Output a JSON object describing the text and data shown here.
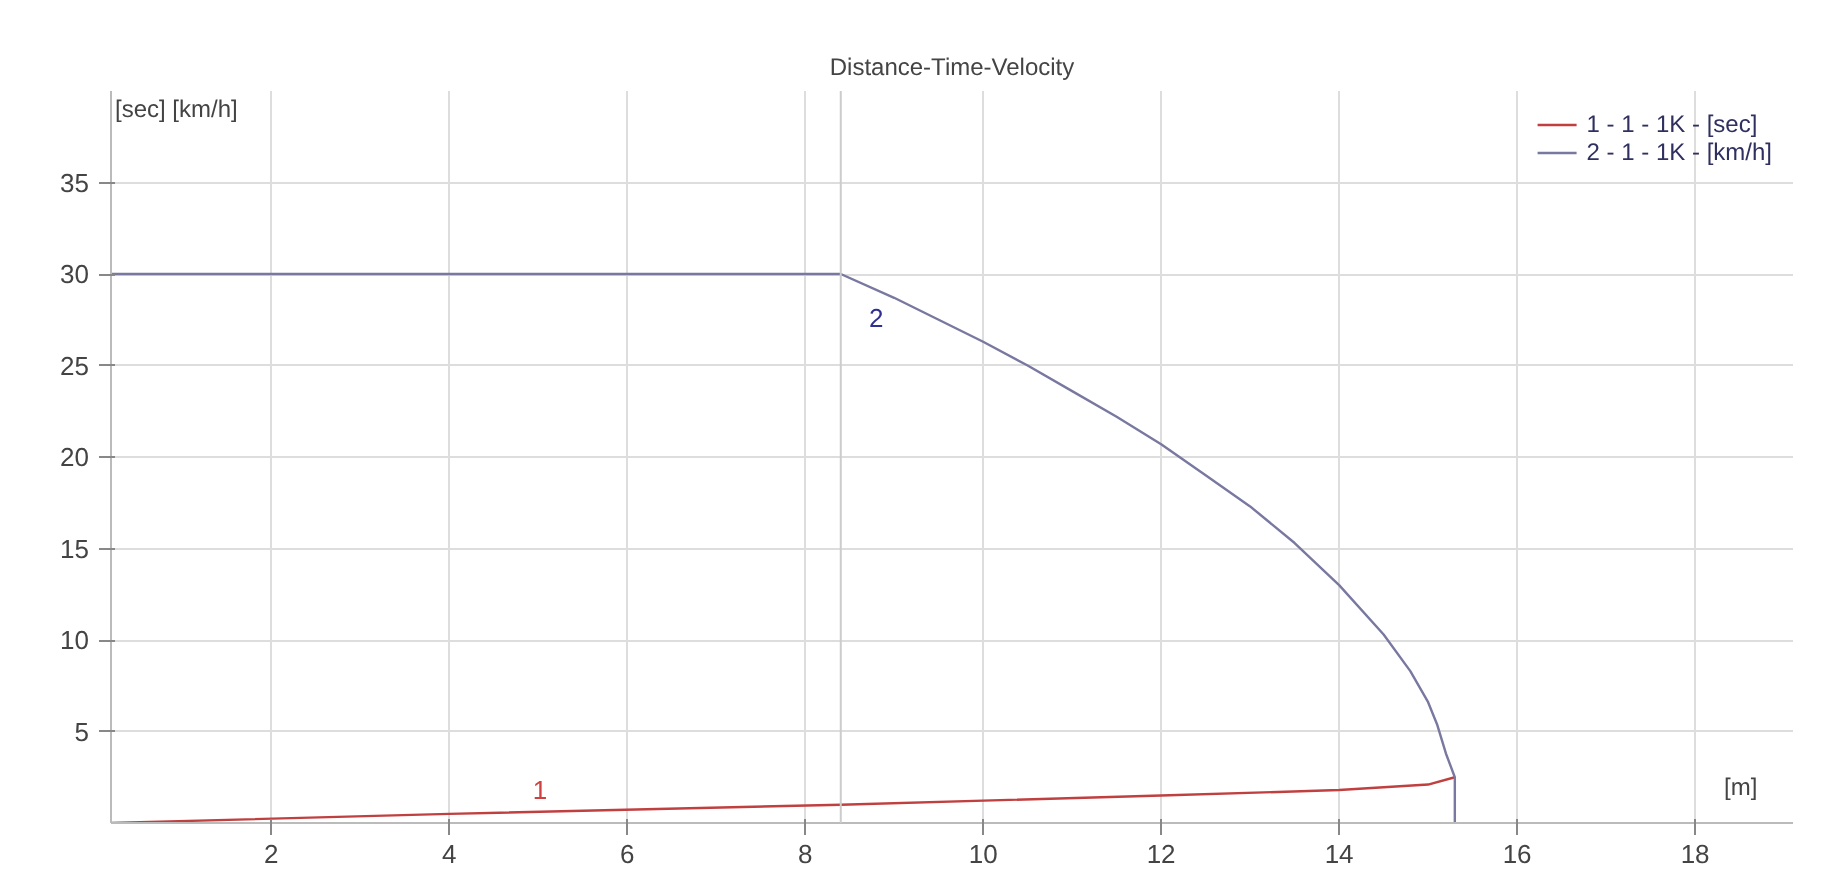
{
  "chart_data": {
    "type": "line",
    "title": "Distance-Time-Velocity",
    "xlabel": "[m]",
    "ylabel": "[sec] [km/h]",
    "xlim": [
      0.2,
      19.1
    ],
    "ylim": [
      0,
      40
    ],
    "xticks": [
      2,
      4,
      6,
      8,
      10,
      12,
      14,
      16,
      18
    ],
    "yticks": [
      5,
      10,
      15,
      20,
      25,
      30,
      35
    ],
    "grid": true,
    "legend": "top right",
    "marker": "none",
    "line_style": "solid",
    "ref_lines": [
      {
        "axis": "x",
        "value": 8.4,
        "label": null
      }
    ],
    "annotations": [
      "1",
      "2"
    ],
    "series": [
      {
        "name": "1 - 1 - 1K - [sec]",
        "color": "#c04040",
        "x": [
          0.2,
          4,
          8.4,
          12,
          14,
          15,
          15.3
        ],
        "values": [
          0,
          0.5,
          1.0,
          1.5,
          1.8,
          2.1,
          2.5
        ]
      },
      {
        "name": "2 - 1 - 1K - [km/h]",
        "color": "#7878a0",
        "x": [
          0.2,
          8.4,
          9,
          9.5,
          10,
          10.5,
          11,
          11.5,
          12,
          12.5,
          13,
          13.5,
          14,
          14.5,
          14.8,
          15,
          15.1,
          15.2,
          15.3,
          15.3
        ],
        "values": [
          30,
          30,
          28.7,
          27.5,
          26.3,
          25,
          23.6,
          22.2,
          20.7,
          19,
          17.3,
          15.3,
          13,
          10.3,
          8.3,
          6.6,
          5.4,
          3.8,
          2.5,
          0
        ]
      }
    ]
  }
}
